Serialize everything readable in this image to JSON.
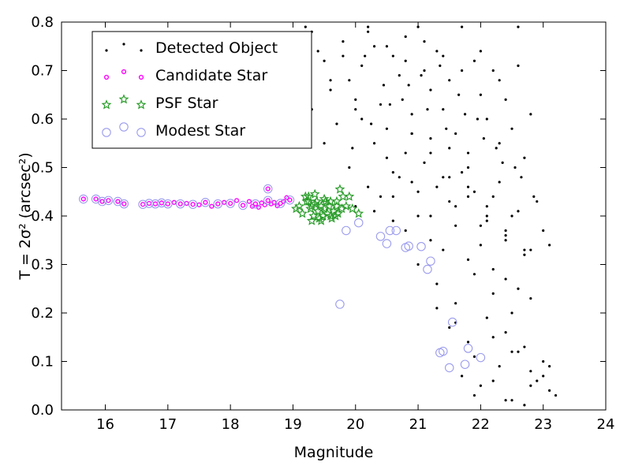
{
  "chart_data": {
    "type": "scatter",
    "title": "",
    "xlabel": "Magnitude",
    "ylabel": "T = 2σ² (arcsec²)",
    "xlim": [
      15.3,
      24
    ],
    "ylim": [
      0.0,
      0.8
    ],
    "xticks": [
      "16",
      "17",
      "18",
      "19",
      "20",
      "21",
      "22",
      "23",
      "24"
    ],
    "yticks": [
      "0.0",
      "0.1",
      "0.2",
      "0.3",
      "0.4",
      "0.5",
      "0.6",
      "0.7",
      "0.8"
    ],
    "grid": false,
    "legend_position": "top-left",
    "series": [
      {
        "name": "Detected Object",
        "marker": "dot",
        "color": "#000000",
        "x": [
          19.2,
          19.3,
          19.4,
          19.5,
          19.6,
          19.3,
          19.5,
          19.7,
          19.8,
          19.9,
          20.0,
          20.1,
          20.2,
          20.3,
          20.4,
          20.5,
          20.6,
          20.7,
          20.8,
          20.9,
          21.0,
          21.1,
          21.2,
          21.3,
          21.4,
          21.5,
          21.6,
          21.7,
          21.8,
          21.9,
          22.0,
          22.1,
          22.2,
          22.3,
          22.4,
          22.5,
          22.6,
          22.7,
          22.8,
          22.9,
          23.0,
          23.1,
          23.2,
          20.1,
          20.3,
          20.5,
          20.7,
          20.9,
          21.1,
          21.3,
          21.5,
          21.7,
          21.9,
          22.1,
          22.3,
          22.5,
          19.9,
          20.2,
          20.4,
          20.6,
          20.8,
          21.0,
          21.2,
          21.4,
          21.6,
          21.8,
          22.0,
          22.2,
          22.4,
          22.6,
          22.8,
          20.0,
          20.3,
          20.6,
          20.9,
          21.2,
          21.5,
          21.8,
          22.1,
          22.4,
          22.7,
          19.95,
          20.25,
          20.55,
          20.85,
          21.15,
          21.45,
          21.75,
          22.05,
          22.35,
          22.65,
          20.15,
          20.45,
          20.75,
          21.05,
          21.35,
          21.65,
          21.95,
          22.25,
          22.55,
          22.85,
          20.6,
          20.8,
          21.0,
          21.2,
          21.4,
          21.6,
          21.8,
          22.0,
          22.2,
          22.4,
          22.6,
          21.0,
          21.3,
          21.6,
          21.9,
          22.2,
          22.5,
          22.8,
          21.5,
          21.8,
          22.1,
          22.4,
          22.7,
          23.0,
          21.7,
          22.0,
          22.3,
          22.6,
          22.9,
          20.2,
          20.5,
          20.8,
          21.1,
          21.4,
          21.7,
          22.0,
          22.3,
          22.6,
          19.6,
          19.8,
          20.0,
          20.9,
          21.2,
          21.5,
          21.8,
          22.1,
          22.4,
          22.7,
          21.3,
          21.6,
          21.9,
          22.2,
          22.5,
          22.8,
          23.1,
          21.9,
          22.2,
          22.5,
          22.8,
          23.1,
          22.4,
          22.7,
          23.0
        ],
        "y": [
          0.79,
          0.78,
          0.74,
          0.72,
          0.66,
          0.62,
          0.55,
          0.59,
          0.76,
          0.68,
          0.64,
          0.71,
          0.79,
          0.75,
          0.63,
          0.58,
          0.73,
          0.69,
          0.77,
          0.61,
          0.79,
          0.7,
          0.66,
          0.74,
          0.62,
          0.68,
          0.57,
          0.79,
          0.53,
          0.72,
          0.65,
          0.6,
          0.7,
          0.55,
          0.64,
          0.58,
          0.79,
          0.52,
          0.61,
          0.43,
          0.37,
          0.34,
          0.03,
          0.6,
          0.55,
          0.52,
          0.48,
          0.57,
          0.51,
          0.46,
          0.54,
          0.49,
          0.45,
          0.42,
          0.47,
          0.4,
          0.5,
          0.46,
          0.44,
          0.49,
          0.53,
          0.45,
          0.56,
          0.48,
          0.42,
          0.5,
          0.38,
          0.44,
          0.36,
          0.41,
          0.33,
          0.42,
          0.41,
          0.44,
          0.47,
          0.4,
          0.43,
          0.46,
          0.39,
          0.35,
          0.32,
          0.54,
          0.59,
          0.63,
          0.67,
          0.62,
          0.58,
          0.61,
          0.56,
          0.51,
          0.48,
          0.73,
          0.67,
          0.64,
          0.69,
          0.71,
          0.65,
          0.6,
          0.54,
          0.5,
          0.44,
          0.39,
          0.37,
          0.4,
          0.35,
          0.33,
          0.38,
          0.31,
          0.34,
          0.29,
          0.27,
          0.25,
          0.3,
          0.26,
          0.22,
          0.28,
          0.24,
          0.2,
          0.23,
          0.17,
          0.14,
          0.19,
          0.16,
          0.13,
          0.1,
          0.07,
          0.05,
          0.09,
          0.12,
          0.06,
          0.78,
          0.75,
          0.72,
          0.76,
          0.73,
          0.7,
          0.74,
          0.68,
          0.71,
          0.68,
          0.73,
          0.62,
          0.57,
          0.53,
          0.48,
          0.44,
          0.4,
          0.37,
          0.33,
          0.21,
          0.18,
          0.11,
          0.15,
          0.12,
          0.08,
          0.04,
          0.03,
          0.06,
          0.02,
          0.05,
          0.09,
          0.02,
          0.01,
          0.07
        ]
      },
      {
        "name": "Candidate Star",
        "marker": "small-circle",
        "color": "#ff00ff",
        "x": [
          15.65,
          15.85,
          15.95,
          16.05,
          16.2,
          16.3,
          16.6,
          16.7,
          16.8,
          16.9,
          17.0,
          17.1,
          17.2,
          17.3,
          17.4,
          17.5,
          17.6,
          17.7,
          17.8,
          17.9,
          18.0,
          18.1,
          18.2,
          18.3,
          18.35,
          18.4,
          18.45,
          18.5,
          18.55,
          18.6,
          18.65,
          18.7,
          18.75,
          18.8,
          18.85,
          18.9,
          18.95,
          18.6
        ],
        "y": [
          0.435,
          0.435,
          0.43,
          0.432,
          0.43,
          0.425,
          0.424,
          0.426,
          0.425,
          0.427,
          0.425,
          0.428,
          0.425,
          0.426,
          0.424,
          0.423,
          0.428,
          0.42,
          0.425,
          0.428,
          0.426,
          0.432,
          0.422,
          0.43,
          0.42,
          0.425,
          0.418,
          0.427,
          0.423,
          0.432,
          0.425,
          0.428,
          0.421,
          0.426,
          0.43,
          0.438,
          0.433,
          0.456
        ]
      },
      {
        "name": "PSF Star",
        "marker": "star",
        "color": "#2a9d2a",
        "x": [
          19.05,
          19.1,
          19.15,
          19.2,
          19.22,
          19.25,
          19.28,
          19.3,
          19.33,
          19.35,
          19.38,
          19.4,
          19.42,
          19.45,
          19.48,
          19.5,
          19.52,
          19.55,
          19.58,
          19.6,
          19.62,
          19.65,
          19.68,
          19.7,
          19.72,
          19.75,
          19.78,
          19.8,
          19.85,
          19.9,
          19.95,
          20.05,
          19.3,
          19.4,
          19.5,
          19.6,
          19.7,
          19.45,
          19.25,
          19.35
        ],
        "y": [
          0.415,
          0.42,
          0.405,
          0.44,
          0.43,
          0.43,
          0.415,
          0.42,
          0.4,
          0.425,
          0.43,
          0.41,
          0.395,
          0.42,
          0.4,
          0.415,
          0.43,
          0.405,
          0.42,
          0.43,
          0.395,
          0.41,
          0.4,
          0.43,
          0.405,
          0.455,
          0.415,
          0.44,
          0.42,
          0.44,
          0.415,
          0.405,
          0.39,
          0.41,
          0.435,
          0.4,
          0.42,
          0.39,
          0.44,
          0.445
        ]
      },
      {
        "name": "Modest Star",
        "marker": "open-circle",
        "color": "#9b9bee",
        "x": [
          15.65,
          15.85,
          15.95,
          16.05,
          16.2,
          16.3,
          16.6,
          16.7,
          16.8,
          16.9,
          17.0,
          17.2,
          17.4,
          17.6,
          17.8,
          18.0,
          18.2,
          18.4,
          18.6,
          18.8,
          18.95,
          18.6,
          19.85,
          20.05,
          20.4,
          20.5,
          20.55,
          20.65,
          20.8,
          20.85,
          21.15,
          21.2,
          21.35,
          21.5,
          21.55,
          21.75,
          21.8,
          22.0,
          19.75,
          21.4,
          21.05
        ],
        "y": [
          0.435,
          0.435,
          0.43,
          0.432,
          0.43,
          0.425,
          0.424,
          0.426,
          0.425,
          0.427,
          0.425,
          0.425,
          0.424,
          0.428,
          0.425,
          0.426,
          0.422,
          0.425,
          0.432,
          0.426,
          0.433,
          0.456,
          0.37,
          0.386,
          0.358,
          0.343,
          0.37,
          0.37,
          0.335,
          0.338,
          0.29,
          0.307,
          0.118,
          0.087,
          0.181,
          0.094,
          0.127,
          0.108,
          0.218,
          0.121,
          0.337
        ]
      }
    ]
  }
}
